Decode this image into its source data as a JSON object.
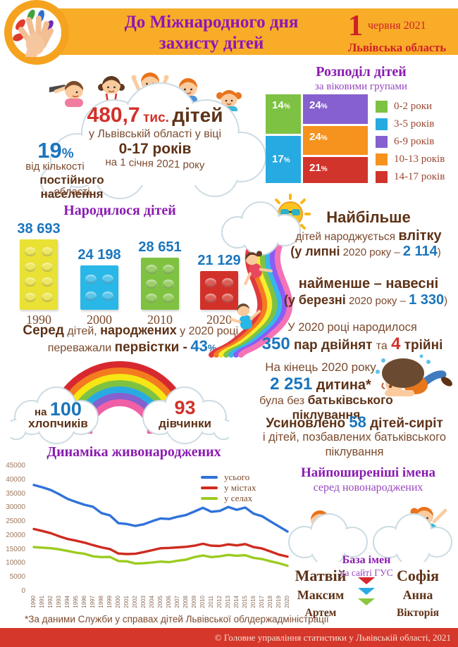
{
  "percent_sign": "%",
  "header": {
    "title_line1": "До Міжнародного дня",
    "title_line2": "захисту дітей",
    "day": "1",
    "date": "червня 2021",
    "region": "Львівська область"
  },
  "population": {
    "number": "480,7",
    "thousand": "тис.",
    "children": "дітей",
    "line2": "у Львівській області у віці",
    "age_range": "0-17 років",
    "line4": "на 1 січня 2021 року",
    "share": "19",
    "share_sub1": "від кількості",
    "share_sub2": "постійного населення",
    "share_sub3": "області"
  },
  "births_note": {
    "a": "Серед",
    "b": "дітей,",
    "c": "народжених",
    "d": "у 2020 році,",
    "e": "переважали",
    "f": "первістки -",
    "g": "43"
  },
  "seasons": {
    "most_title": "Найбільше",
    "most_a": "дітей народжується",
    "most_b": "влітку",
    "most_c": "(у липні",
    "most_d": "2020 року –",
    "most_e": "2 114",
    "most_f": ")",
    "least_title": "найменше – навесні",
    "least_a": "(у березні",
    "least_b": "2020 року –",
    "least_c": "1 330",
    "least_d": ")"
  },
  "twins": {
    "line1": "У 2020 році народилося",
    "a": "350",
    "b": "пар двійнят",
    "c": "та",
    "d": "4",
    "e": "трійні"
  },
  "ratio": {
    "boys_prefix": "на",
    "boys_value": "100",
    "boys_label": "хлопчиків",
    "girls_value": "93",
    "girls_label": "дівчинки"
  },
  "care": {
    "line1": "На кінець 2020 року",
    "a": "2 251",
    "b": "дитина*",
    "c": "була без",
    "d": "батьківського піклування"
  },
  "adoption": {
    "a": "Усиновлено",
    "b": "58",
    "c": "дітей-сиріт",
    "line2": "і дітей, позбавлених батьківського",
    "line3": "піклування"
  },
  "names": {
    "title": "Найпоширеніші імена",
    "subtitle": "серед новонароджених",
    "base_line1": "База імен",
    "base_line2": "на сайті ГУС",
    "boys": [
      "Матвій",
      "Максим",
      "Артем"
    ],
    "girls": [
      "Софія",
      "Анна",
      "Вікторія"
    ]
  },
  "footnote": "*За даними Служби у справах дітей Львівської облдержадміністрації",
  "footer": "© Головне управління статистики у Львівській області, 2021",
  "chart_data": [
    {
      "id": "age_distribution",
      "type": "stacked-bar",
      "title": "Розподіл дітей",
      "subtitle": "за віковими групами",
      "unit": "%",
      "columns": [
        {
          "segments": [
            {
              "label": "0-2 роки",
              "pct": 14,
              "color": "#7DC242"
            },
            {
              "label": "3-5 років",
              "pct": 17,
              "color": "#27AAE1"
            }
          ]
        },
        {
          "segments": [
            {
              "label": "6-9 років",
              "pct": 24,
              "color": "#8560CE"
            },
            {
              "label": "10-13 років",
              "pct": 24,
              "color": "#F6921E"
            },
            {
              "label": "14-17 років",
              "pct": 21,
              "color": "#D1342B"
            }
          ]
        }
      ],
      "legend": [
        {
          "label": "0-2 роки",
          "color": "#7DC242"
        },
        {
          "label": "3-5 років",
          "color": "#27AAE1"
        },
        {
          "label": "6-9 років",
          "color": "#8560CE"
        },
        {
          "label": "10-13 років",
          "color": "#F6921E"
        },
        {
          "label": "14-17 років",
          "color": "#D1342B"
        }
      ],
      "legend_position": "right"
    },
    {
      "id": "births_by_year",
      "type": "bar",
      "title": "Народилося дітей",
      "categories": [
        "1990",
        "2000",
        "2010",
        "2020"
      ],
      "values": [
        38693,
        24198,
        28651,
        21129
      ],
      "labels": [
        "38 693",
        "24 198",
        "28 651",
        "21 129"
      ],
      "colors": [
        "#E9E134",
        "#29B7E8",
        "#7FC241",
        "#D2312A"
      ],
      "stud_rows": [
        4,
        2,
        3,
        2
      ]
    },
    {
      "id": "dynamics_live_births",
      "type": "line",
      "title": "Динаміка живонароджених",
      "x": [
        1990,
        1991,
        1992,
        1993,
        1994,
        1995,
        1996,
        1997,
        1998,
        1999,
        2000,
        2001,
        2002,
        2003,
        2004,
        2005,
        2006,
        2007,
        2008,
        2009,
        2010,
        2011,
        2012,
        2013,
        2014,
        2015,
        2016,
        2017,
        2018,
        2019,
        2020
      ],
      "series": [
        {
          "name": "усього",
          "color": "#2F72D9",
          "values": [
            38200,
            37400,
            36400,
            34900,
            33200,
            32100,
            31100,
            30400,
            28100,
            27300,
            24500,
            24200,
            23500,
            24100,
            25200,
            26200,
            26000,
            26800,
            27400,
            28700,
            30000,
            28600,
            28900,
            30300,
            29300,
            30100,
            27900,
            27000,
            25100,
            23300,
            21500
          ]
        },
        {
          "name": "у містах",
          "color": "#CF2B20",
          "values": [
            22400,
            21700,
            20900,
            19800,
            18800,
            18200,
            17500,
            16600,
            15800,
            15200,
            13600,
            13400,
            13500,
            14100,
            14800,
            15500,
            15600,
            15800,
            16000,
            16400,
            17100,
            16400,
            16300,
            16900,
            16500,
            17000,
            15900,
            15400,
            14300,
            13200,
            12500
          ]
        },
        {
          "name": "у селах",
          "color": "#9CCB1F",
          "values": [
            15900,
            15700,
            15500,
            15100,
            14500,
            13900,
            13500,
            12600,
            12300,
            12400,
            10900,
            10800,
            10000,
            10100,
            10400,
            10700,
            10500,
            11000,
            11400,
            12300,
            12900,
            12300,
            12600,
            13100,
            12800,
            13000,
            12000,
            11600,
            10800,
            10100,
            9200
          ]
        }
      ],
      "ylim": [
        0,
        45000
      ],
      "yticks": [
        "0",
        "5000",
        "10000",
        "15000",
        "20000",
        "25000",
        "30000",
        "35000",
        "40000",
        "45000"
      ],
      "grid": false,
      "legend_position": "top-right"
    }
  ]
}
